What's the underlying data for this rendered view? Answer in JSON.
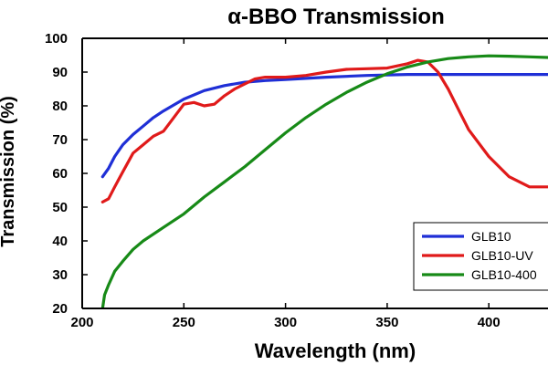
{
  "chart_data": {
    "type": "line",
    "title": "α-BBO Transmission",
    "xlabel": "Wavelength (nm)",
    "ylabel": "Transmission (%)",
    "xlim": [
      200,
      430
    ],
    "ylim": [
      20,
      100
    ],
    "xticks": [
      200,
      250,
      300,
      350,
      400
    ],
    "yticks": [
      20,
      30,
      40,
      50,
      60,
      70,
      80,
      90,
      100
    ],
    "grid": false,
    "legend_position": "bottom-right",
    "series": [
      {
        "name": "GLB10",
        "color": "#1f2fd6",
        "x": [
          210,
          213,
          216,
          220,
          225,
          230,
          235,
          240,
          250,
          260,
          270,
          280,
          290,
          300,
          320,
          340,
          360,
          380,
          400,
          420,
          430
        ],
        "y": [
          59,
          61.5,
          65,
          68.5,
          71.5,
          74,
          76.5,
          78.5,
          82,
          84.5,
          86,
          87,
          87.5,
          87.8,
          88.5,
          89,
          89.3,
          89.3,
          89.3,
          89.3,
          89.3
        ]
      },
      {
        "name": "GLB10-UV",
        "color": "#e01a1a",
        "x": [
          210,
          213,
          216,
          220,
          225,
          230,
          235,
          240,
          245,
          250,
          255,
          260,
          265,
          270,
          275,
          280,
          285,
          290,
          300,
          310,
          320,
          330,
          340,
          350,
          360,
          365,
          370,
          375,
          380,
          385,
          390,
          400,
          410,
          420,
          430
        ],
        "y": [
          51.5,
          52.5,
          56,
          60.5,
          66,
          68.5,
          71,
          72.5,
          76.5,
          80.5,
          81,
          80,
          80.5,
          83,
          85,
          86.5,
          88,
          88.5,
          88.5,
          89,
          90,
          90.8,
          91,
          91.2,
          92.5,
          93.5,
          93,
          90,
          85,
          79,
          73,
          65,
          59,
          56,
          56
        ]
      },
      {
        "name": "GLB10-400",
        "color": "#178a17",
        "x": [
          210,
          211,
          213,
          216,
          220,
          225,
          230,
          240,
          250,
          260,
          270,
          280,
          290,
          300,
          310,
          320,
          330,
          340,
          350,
          360,
          370,
          380,
          390,
          400,
          410,
          420,
          430
        ],
        "y": [
          20,
          24,
          27,
          31,
          34,
          37.5,
          40,
          44,
          48,
          53,
          57.5,
          62,
          67,
          72,
          76.5,
          80.5,
          84,
          87,
          89.5,
          91.5,
          93,
          94,
          94.5,
          94.8,
          94.7,
          94.5,
          94.3
        ]
      }
    ]
  }
}
